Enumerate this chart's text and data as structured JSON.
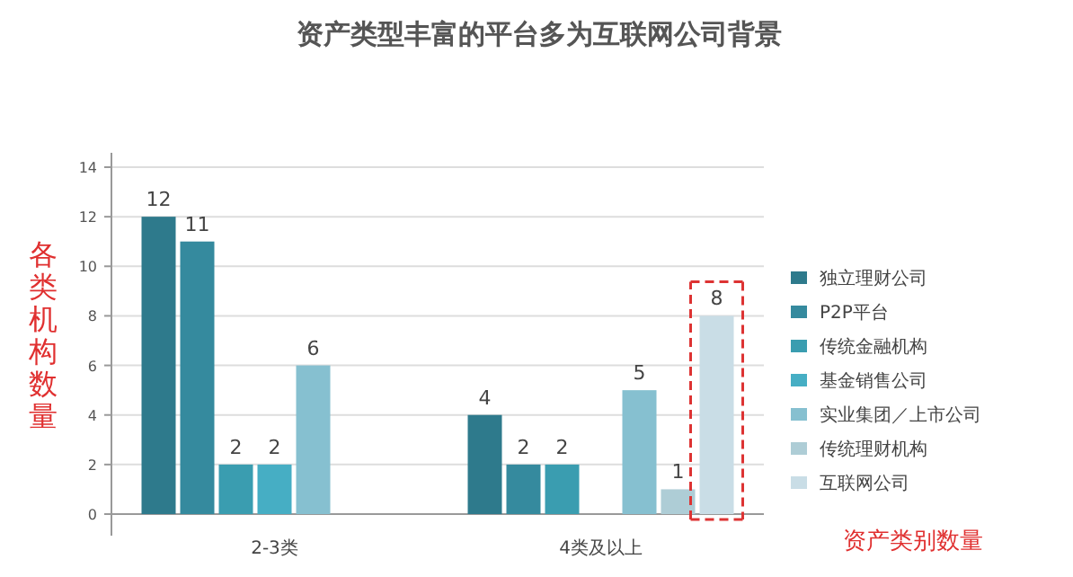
{
  "chart_data": {
    "type": "bar",
    "title": "资产类型丰富的平台多为互联网公司背景",
    "xlabel": "资产类别数量",
    "ylabel": "各类机构数量",
    "categories": [
      "2-3类",
      "4类及以上"
    ],
    "series": [
      {
        "name": "独立理财公司",
        "color": "#2e7a8c",
        "values": [
          12,
          4
        ]
      },
      {
        "name": "P2P平台",
        "color": "#358a9e",
        "values": [
          11,
          2
        ]
      },
      {
        "name": "传统金融机构",
        "color": "#3a9db0",
        "values": [
          2,
          2
        ]
      },
      {
        "name": "基金销售公司",
        "color": "#46aec4",
        "values": [
          2,
          null
        ]
      },
      {
        "name": "实业集团／上市公司",
        "color": "#86c0d0",
        "values": [
          6,
          5
        ]
      },
      {
        "name": "传统理财机构",
        "color": "#aecdd6",
        "values": [
          null,
          1
        ]
      },
      {
        "name": "互联网公司",
        "color": "#c9dde6",
        "values": [
          null,
          8
        ]
      }
    ],
    "ylim": [
      0,
      14
    ],
    "yticks": [
      0,
      2,
      4,
      6,
      8,
      10,
      12,
      14
    ],
    "grid": "y",
    "legend": "right",
    "data_labels": true
  }
}
